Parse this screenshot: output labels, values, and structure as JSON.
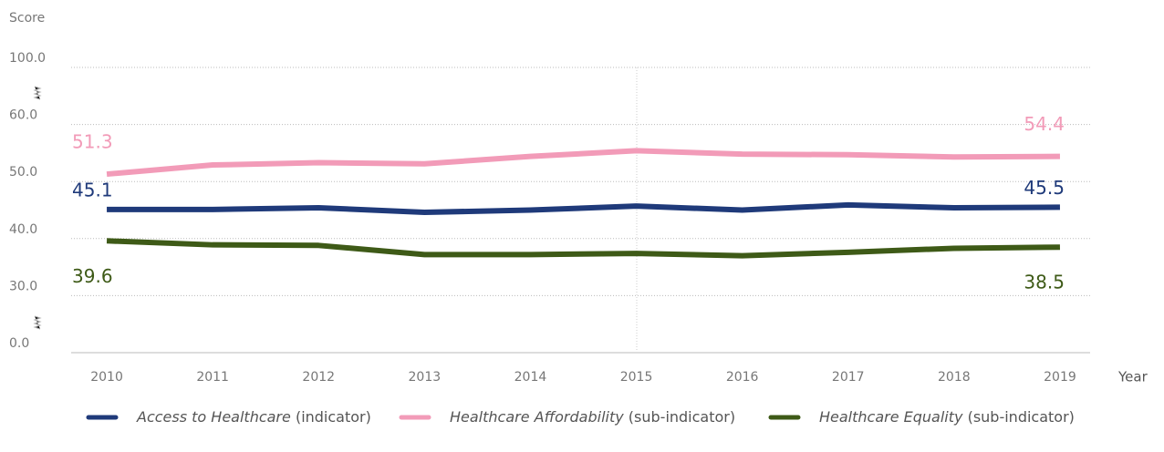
{
  "chart_data": {
    "type": "line",
    "y_axis_label": "Score",
    "x_axis_label": "Year",
    "categories": [
      "2010",
      "2011",
      "2012",
      "2013",
      "2014",
      "2015",
      "2016",
      "2017",
      "2018",
      "2019"
    ],
    "series": [
      {
        "name": "Access to Healthcare (indicator)",
        "color": "#1f3a7a",
        "values": [
          45.1,
          45.1,
          45.4,
          44.6,
          45.0,
          45.7,
          45.0,
          45.9,
          45.4,
          45.5
        ]
      },
      {
        "name": "Healthcare Affordability (sub-indicator)",
        "color": "#f29bb8",
        "values": [
          51.3,
          52.9,
          53.3,
          53.1,
          54.4,
          55.4,
          54.8,
          54.7,
          54.3,
          54.4
        ]
      },
      {
        "name": "Healthcare Equality (sub-indicator)",
        "color": "#3e5a17",
        "values": [
          39.6,
          38.9,
          38.8,
          37.2,
          37.2,
          37.4,
          37.0,
          37.6,
          38.3,
          38.5
        ]
      }
    ],
    "ylim": [
      0,
      100
    ],
    "yticks": [
      {
        "value": 0,
        "label": "0.0"
      },
      {
        "value": 30,
        "label": "30.0"
      },
      {
        "value": 40,
        "label": "40.0"
      },
      {
        "value": 50,
        "label": "50.0"
      },
      {
        "value": 60,
        "label": "60.0"
      },
      {
        "value": 100,
        "label": "100.0"
      }
    ],
    "grid": true
  }
}
